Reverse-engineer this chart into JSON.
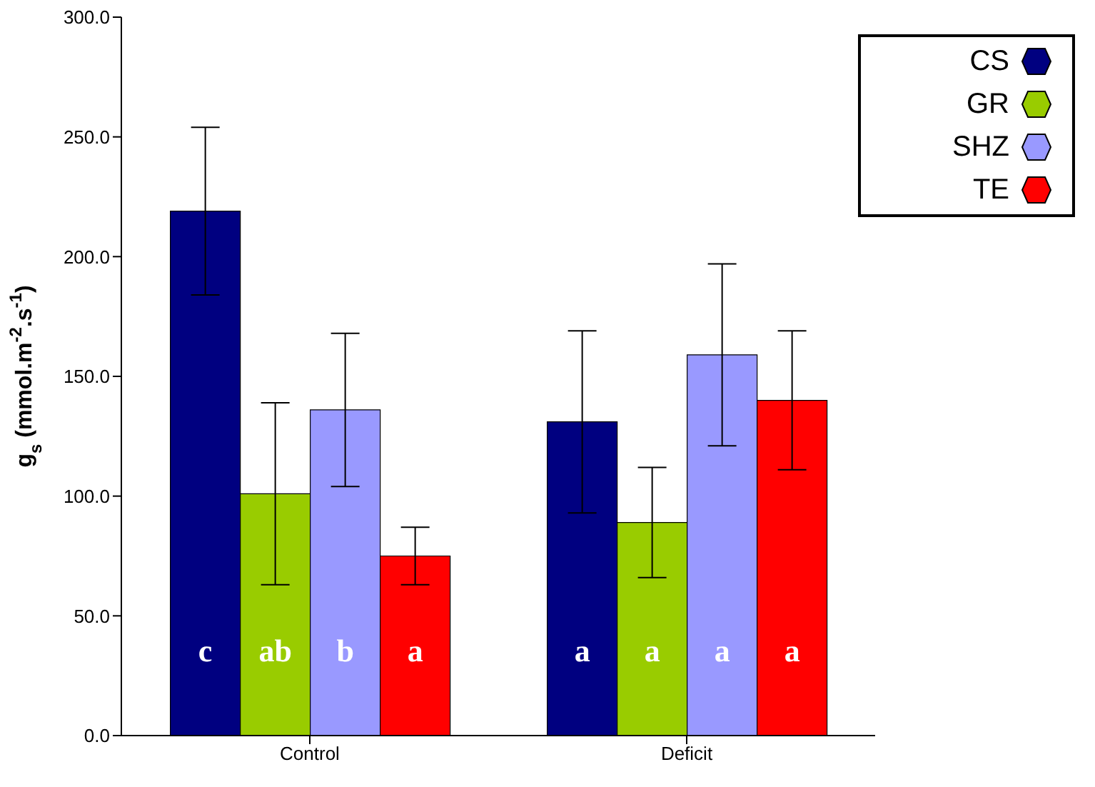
{
  "chart_data": {
    "type": "bar",
    "ylabel": "g$_{s}$ (mmol.m$^{-2}$.s$^{-1}$)",
    "categories": [
      "Control",
      "Deficit"
    ],
    "series": [
      {
        "name": "CS",
        "color": "#000080",
        "values": [
          219,
          131
        ],
        "errors": [
          35,
          38
        ],
        "value_labels": [
          "c",
          "a"
        ]
      },
      {
        "name": "GR",
        "color": "#99cc00",
        "values": [
          101,
          89
        ],
        "errors": [
          38,
          23
        ],
        "value_labels": [
          "ab",
          "a"
        ]
      },
      {
        "name": "SHZ",
        "color": "#9999ff",
        "values": [
          136,
          159
        ],
        "errors": [
          32,
          38
        ],
        "value_labels": [
          "b",
          "a"
        ]
      },
      {
        "name": "TE",
        "color": "#ff0000",
        "values": [
          75,
          140
        ],
        "errors": [
          12,
          29
        ],
        "value_labels": [
          "a",
          "a"
        ]
      }
    ],
    "ylim": [
      0,
      300
    ],
    "yticks": [
      {
        "value": 0,
        "label": "0.0"
      },
      {
        "value": 50,
        "label": "50.0"
      },
      {
        "value": 100,
        "label": "100.0"
      },
      {
        "value": 150,
        "label": "150.0"
      },
      {
        "value": 200,
        "label": "200.0"
      },
      {
        "value": 250,
        "label": "250.0"
      },
      {
        "value": 300,
        "label": "300.0"
      }
    ],
    "legend": "top right",
    "grid": false
  }
}
